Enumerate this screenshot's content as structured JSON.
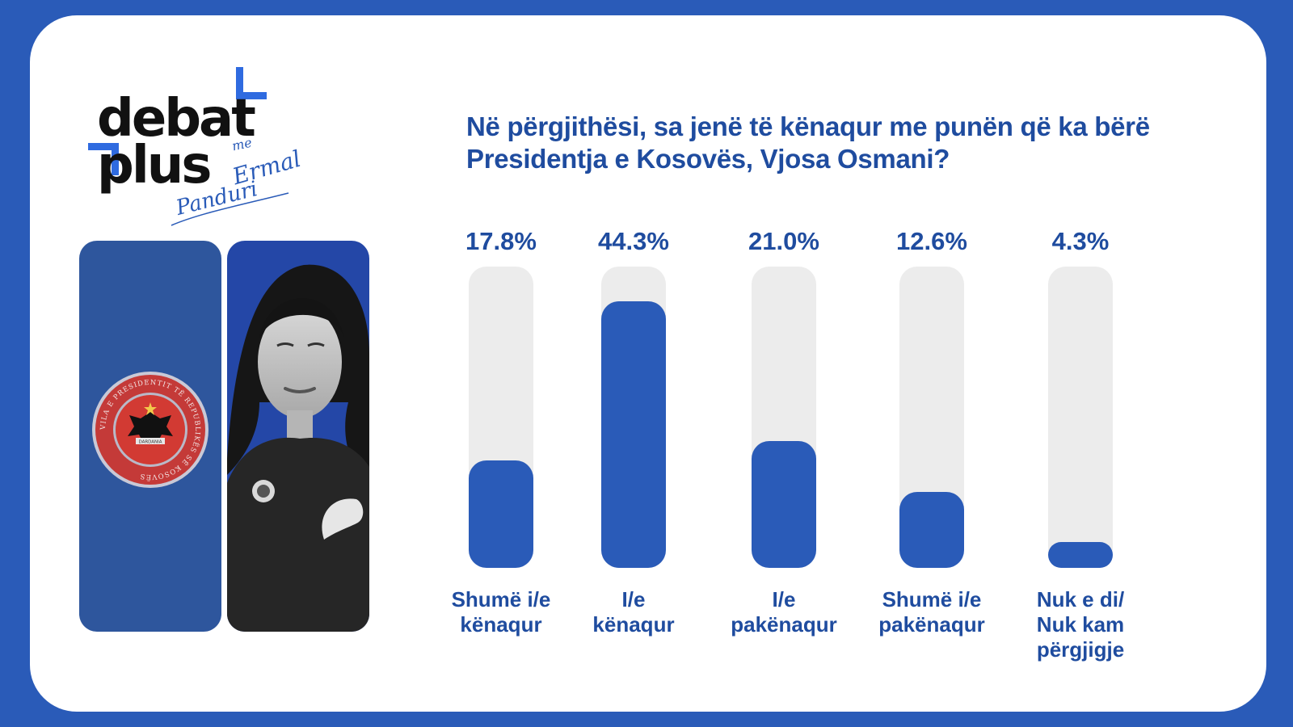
{
  "logo": {
    "line1": "debat",
    "line2": "plus",
    "script_me": "me",
    "script_first": "Ermal",
    "script_last": "Panduri"
  },
  "seal": {
    "ring_text": "VILA E PRESIDENTIT TË REPUBLIKËS SË KOSOVËS",
    "ribbon": "DARDANIA"
  },
  "colors": {
    "background": "#2a5bb8",
    "bar_fill": "#2a5bb8",
    "bar_track": "#ececec",
    "text": "#1f4c9f"
  },
  "chart_data": {
    "type": "bar",
    "title": "Në përgjithësi, sa jenë të kënaqur me punën që ka bërë Presidentja e Kosovës, Vjosa Osmani?",
    "categories": [
      "Shumë i/e\nkënaqur",
      "I/e\nkënaqur",
      "I/e\npakënaqur",
      "Shumë i/e\npakënaqur",
      "Nuk e di/\nNuk kam\npërgjigje"
    ],
    "values": [
      17.8,
      44.3,
      21.0,
      12.6,
      4.3
    ],
    "value_labels": [
      "17.8%",
      "44.3%",
      "21.0%",
      "12.6%",
      "4.3%"
    ],
    "ylim": [
      0,
      50
    ],
    "grid": false
  }
}
